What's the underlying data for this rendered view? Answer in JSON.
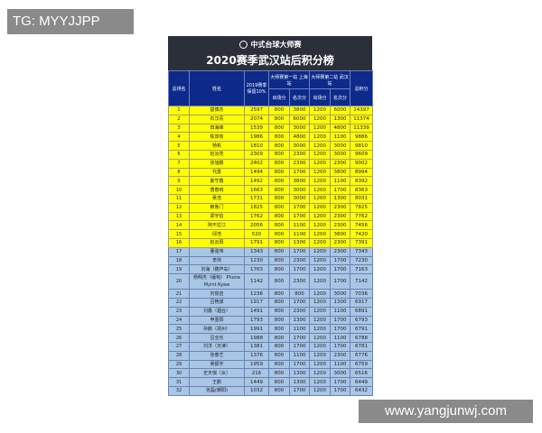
{
  "watermarks": {
    "top": "TG: MYYJJPP",
    "bottom": "www.yangjunwj.com"
  },
  "board": {
    "subtitle": "中式台球大师赛",
    "title": "2020赛季武汉站后积分榜"
  },
  "columns": {
    "rank": "总排名",
    "name": "姓名",
    "prev": "2019赛季保留10%",
    "stage1": "大师赛第一站 上海站",
    "stage2": "大师赛第二站 武汉站",
    "appear": "出场分",
    "place": "名次分",
    "total": "总积分"
  },
  "colors": {
    "top16": "#ffff00",
    "others": "#a8c6e6",
    "header": "#0d2a8a",
    "title_bg": "#2b2f3a"
  },
  "rows": [
    [
      "1",
      "楚博杰",
      "2597",
      "800",
      "3800",
      "1200",
      "6000",
      "14397"
    ],
    [
      "2",
      "石汉青",
      "2074",
      "800",
      "6000",
      "1200",
      "1300",
      "11374"
    ],
    [
      "3",
      "田海峰",
      "1539",
      "800",
      "3000",
      "1200",
      "4800",
      "11339"
    ],
    [
      "4",
      "陈双有",
      "1986",
      "800",
      "4800",
      "1200",
      "1100",
      "9886"
    ],
    [
      "5",
      "杨帆",
      "1810",
      "800",
      "3000",
      "1200",
      "3000",
      "9810"
    ],
    [
      "6",
      "赵汝亮",
      "2309",
      "800",
      "2300",
      "1200",
      "3000",
      "9609"
    ],
    [
      "7",
      "张旭鹏",
      "2402",
      "800",
      "2300",
      "1200",
      "2300",
      "9002"
    ],
    [
      "8",
      "代勇",
      "1494",
      "800",
      "1700",
      "1200",
      "3800",
      "8994"
    ],
    [
      "9",
      "紫守鑫",
      "1492",
      "800",
      "3800",
      "1200",
      "1100",
      "8392"
    ],
    [
      "10",
      "唐春晓",
      "1663",
      "800",
      "3000",
      "1200",
      "1700",
      "8363"
    ],
    [
      "11",
      "吴浩",
      "1731",
      "800",
      "3000",
      "1200",
      "1300",
      "8031"
    ],
    [
      "12",
      "赖鲁门",
      "1825",
      "800",
      "1700",
      "1200",
      "2300",
      "7825"
    ],
    [
      "13",
      "郑宇伯",
      "1762",
      "800",
      "1700",
      "1200",
      "2300",
      "7762"
    ],
    [
      "14",
      "阿不拉江",
      "2056",
      "800",
      "1100",
      "1200",
      "2300",
      "7456"
    ],
    [
      "15",
      "邱浩",
      "520",
      "800",
      "1100",
      "1200",
      "3800",
      "7420"
    ],
    [
      "16",
      "赵云阳",
      "1791",
      "800",
      "1300",
      "1200",
      "2300",
      "7391"
    ],
    [
      "17",
      "董强伟",
      "1343",
      "800",
      "1700",
      "1200",
      "2300",
      "7343"
    ],
    [
      "18",
      "李帅",
      "1230",
      "800",
      "2300",
      "1200",
      "1700",
      "7230"
    ],
    [
      "19",
      "刘海（葫芦岛）",
      "1763",
      "800",
      "1700",
      "1200",
      "1700",
      "7163"
    ],
    [
      "20",
      "杨明杰（缅甸） Phone Myint Kyaw",
      "1142",
      "800",
      "2300",
      "1200",
      "1700",
      "7142"
    ],
    [
      "21",
      "刘俊岩",
      "1236",
      "800",
      "800",
      "1200",
      "3000",
      "7036"
    ],
    [
      "22",
      "吕艳谋",
      "1917",
      "800",
      "1700",
      "1200",
      "1300",
      "6917"
    ],
    [
      "23",
      "刘鑫（烟台）",
      "1491",
      "800",
      "2300",
      "1200",
      "1100",
      "6891"
    ],
    [
      "24",
      "申墨阳",
      "1793",
      "800",
      "1300",
      "1200",
      "1700",
      "6793"
    ],
    [
      "25",
      "孙鹏（郑州）",
      "1991",
      "800",
      "1100",
      "1200",
      "1700",
      "6791"
    ],
    [
      "26",
      "吕全乐",
      "1988",
      "800",
      "1700",
      "1200",
      "1100",
      "6788"
    ],
    [
      "27",
      "刘洋（天津）",
      "1381",
      "800",
      "1700",
      "1200",
      "1700",
      "6781"
    ],
    [
      "28",
      "张泰艺",
      "1376",
      "800",
      "1100",
      "1200",
      "2300",
      "6776"
    ],
    [
      "29",
      "吴振宇",
      "1959",
      "800",
      "1700",
      "1200",
      "1100",
      "6759"
    ],
    [
      "30",
      "史天琪（女）",
      "216",
      "800",
      "1300",
      "1200",
      "3000",
      "6516"
    ],
    [
      "31",
      "王鹏",
      "1449",
      "800",
      "1300",
      "1200",
      "1700",
      "6449"
    ],
    [
      "32",
      "张磊(朝阳)",
      "1032",
      "800",
      "1700",
      "1200",
      "1700",
      "6432"
    ]
  ]
}
